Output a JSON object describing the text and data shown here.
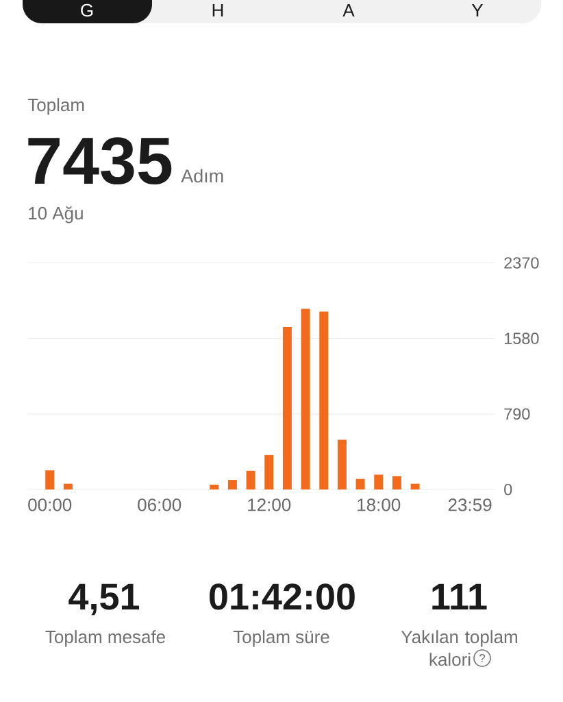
{
  "chart_data": {
    "type": "bar",
    "categories": [
      "00:00",
      null,
      null,
      null,
      null,
      null,
      "06:00",
      null,
      null,
      null,
      null,
      null,
      "12:00",
      null,
      null,
      null,
      null,
      null,
      "18:00",
      null,
      null,
      null,
      null,
      "23:59"
    ],
    "values": [
      200,
      60,
      null,
      null,
      null,
      null,
      null,
      null,
      null,
      50,
      100,
      195,
      360,
      1700,
      1890,
      1860,
      520,
      110,
      155,
      140,
      60,
      null,
      null,
      null
    ],
    "color": "#f26b1d",
    "ylim": [
      0,
      2370
    ],
    "yticks": [
      0,
      790,
      1580,
      2370
    ],
    "grid": "y",
    "annotations": [
      "G",
      "H",
      "A",
      "Y",
      "Toplam",
      "7435",
      "Adım",
      "10 Ağu",
      "4,51",
      "Toplam mesafe",
      "01:42:00",
      "Toplam süre",
      "111",
      "Yakılan toplam kalori",
      "?"
    ]
  }
}
